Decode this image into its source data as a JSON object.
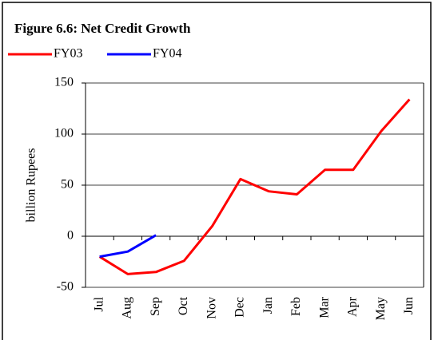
{
  "chart_data": {
    "type": "line",
    "title": "Figure 6.6: Net Credit Growth",
    "ylabel": "billion Rupees",
    "categories": [
      "Jul",
      "Aug",
      "Sep",
      "Oct",
      "Nov",
      "Dec",
      "Jan",
      "Feb",
      "Mar",
      "Apr",
      "May",
      "Jun"
    ],
    "series": [
      {
        "name": "FY03",
        "color": "#ff0000",
        "values": [
          -20,
          -37,
          -35,
          -24,
          10,
          56,
          44,
          41,
          65,
          65,
          103,
          134
        ]
      },
      {
        "name": "FY04",
        "color": "#0000ff",
        "values": [
          -20,
          -15,
          1,
          null,
          null,
          null,
          null,
          null,
          null,
          null,
          null,
          null
        ]
      }
    ],
    "ylim": [
      -50,
      150
    ],
    "yticks": [
      -50,
      0,
      50,
      100,
      150
    ],
    "grid": true
  }
}
